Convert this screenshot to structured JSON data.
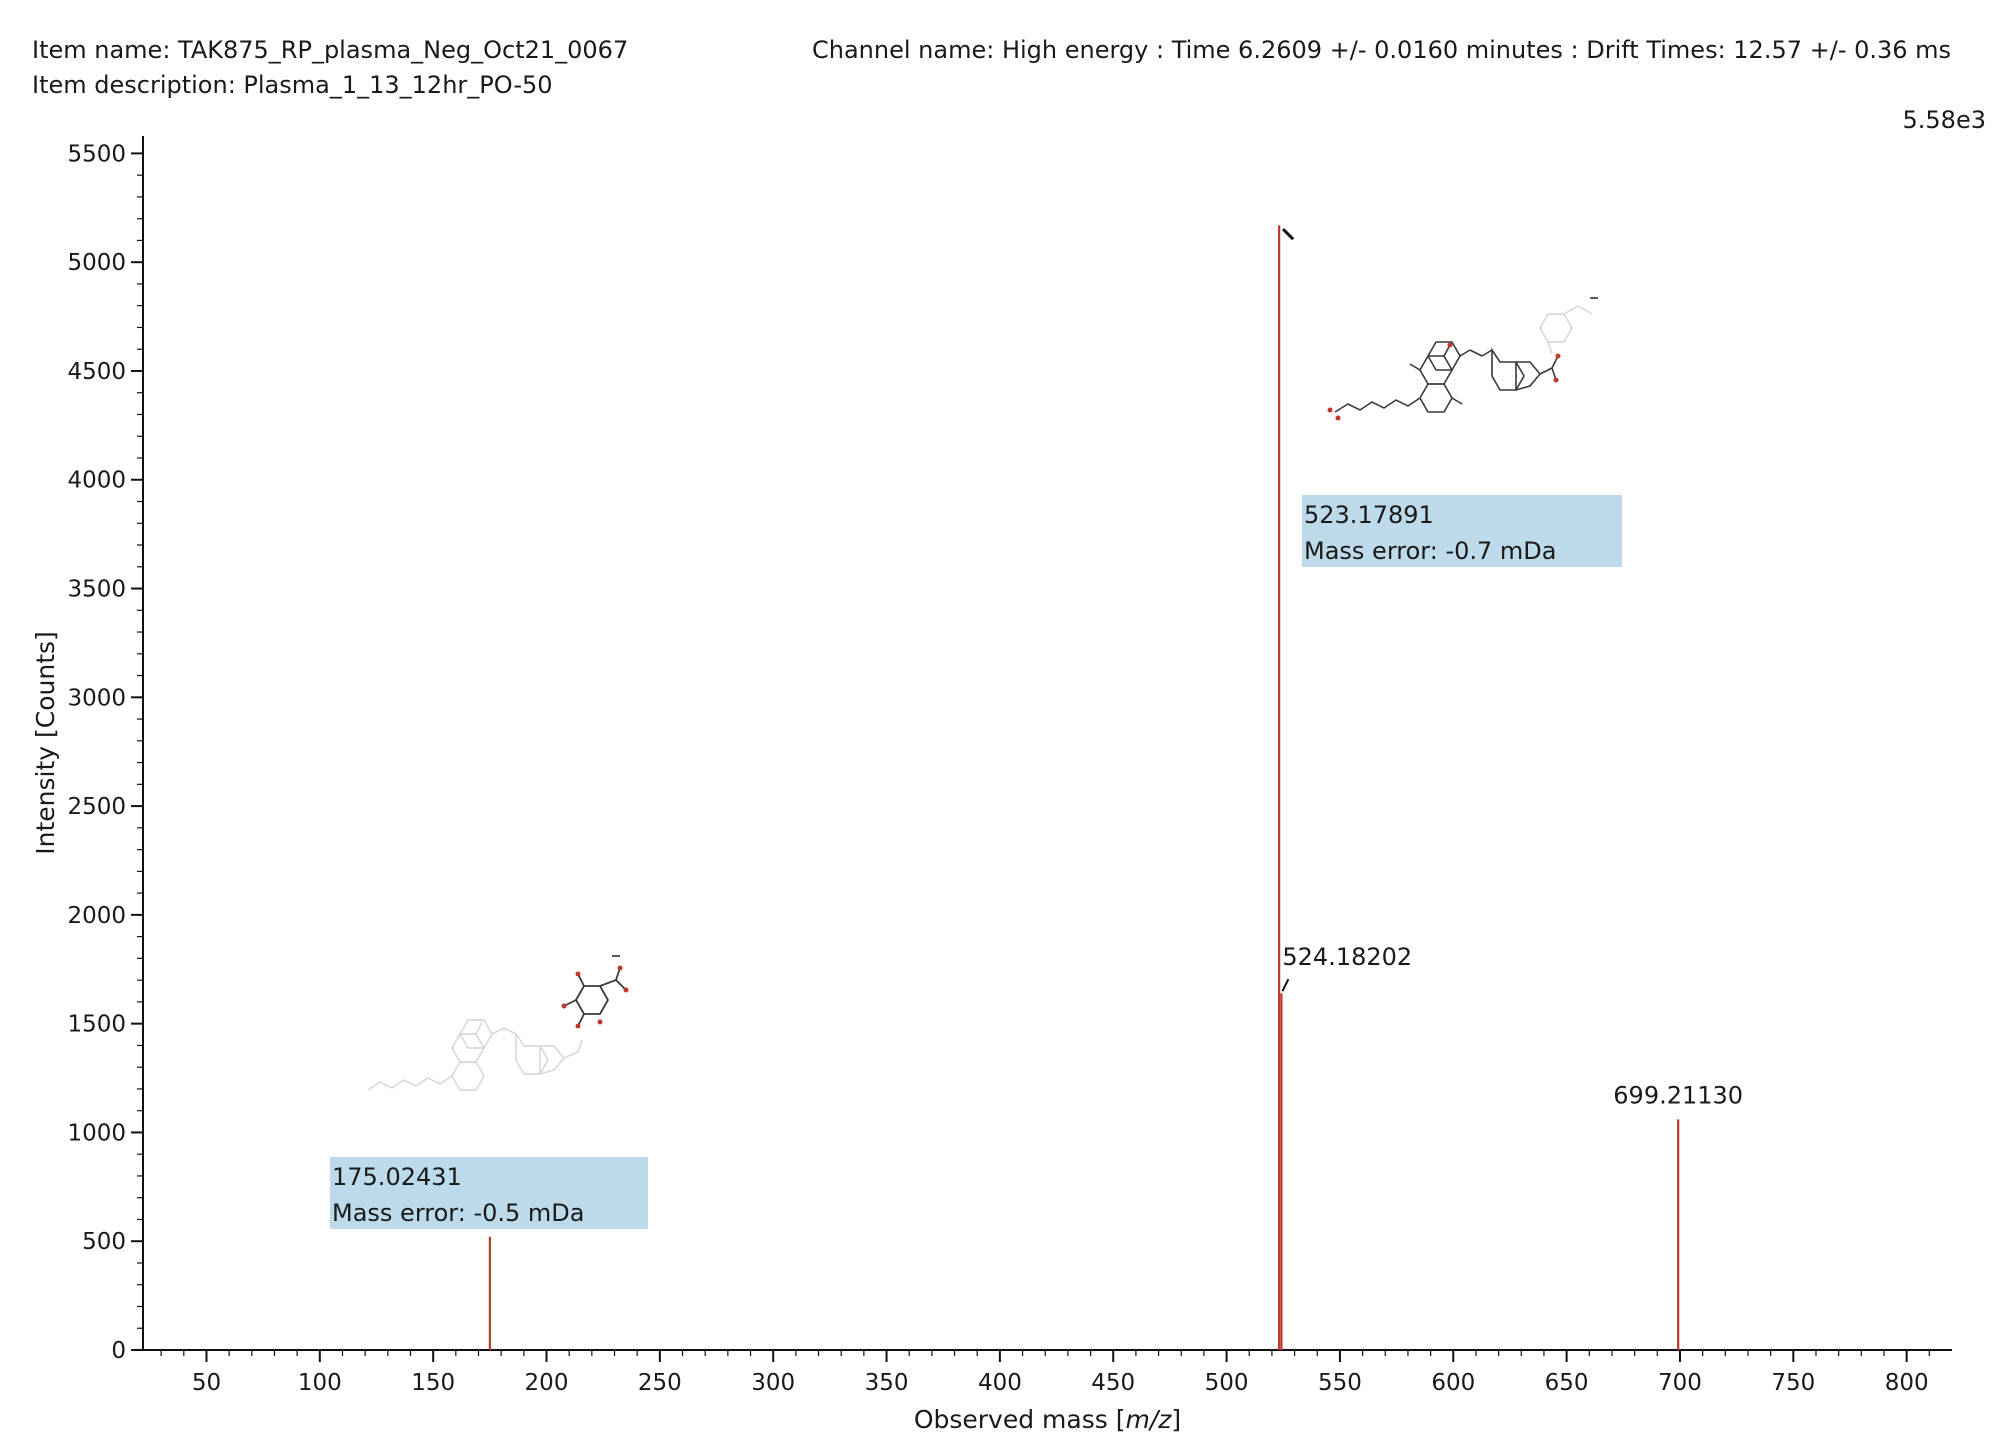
{
  "header": {
    "item_name": "Item name: TAK875_RP_plasma_Neg_Oct21_0067",
    "item_description": "Item description: Plasma_1_13_12hr_PO-50",
    "channel": "Channel name: High energy : Time 6.2609 +/- 0.0160 minutes : Drift Times: 12.57 +/- 0.36 ms",
    "scale_max": "5.58e3"
  },
  "chart_data": {
    "type": "bar",
    "title": "",
    "xlabel_prefix": "Observed mass [",
    "xlabel_italic": "m/z",
    "xlabel_suffix": "]",
    "ylabel": "Intensity [Counts]",
    "xlim": [
      22,
      820
    ],
    "ylim": [
      0,
      5580
    ],
    "grid": false,
    "x_ticks": [
      50,
      100,
      150,
      200,
      250,
      300,
      350,
      400,
      450,
      500,
      550,
      600,
      650,
      700,
      750,
      800
    ],
    "y_ticks": [
      0,
      500,
      1000,
      1500,
      2000,
      2500,
      3000,
      3500,
      4000,
      4500,
      5000,
      5500
    ],
    "peak_color": "#c0392b",
    "highlight_color": "#bcdae9",
    "peaks": [
      {
        "mz": 175.02431,
        "intensity": 520,
        "label": "175.02431",
        "mass_error": "Mass error: -0.5 mDa"
      },
      {
        "mz": 523.17891,
        "intensity": 5170,
        "label": "523.17891",
        "mass_error": "Mass error: -0.7 mDa"
      },
      {
        "mz": 524.18202,
        "intensity": 1640,
        "label": "524.18202",
        "mass_error": ""
      },
      {
        "mz": 699.2113,
        "intensity": 1060,
        "label": "699.21130",
        "mass_error": ""
      }
    ]
  }
}
